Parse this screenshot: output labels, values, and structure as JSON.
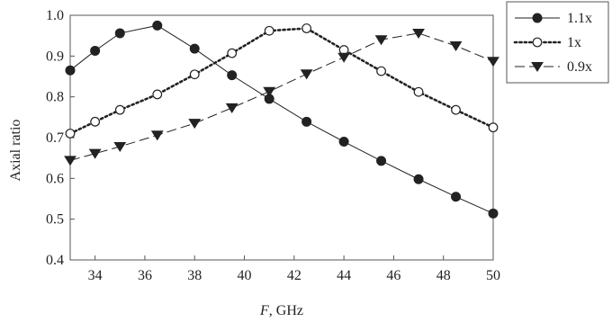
{
  "chart_data": {
    "type": "line",
    "xlabel_prefix": "F",
    "xlabel_suffix": ", GHz",
    "ylabel": "Axial ratio",
    "xlim": [
      33,
      50
    ],
    "ylim": [
      0.4,
      1.0
    ],
    "x_ticks": [
      "34",
      "36",
      "38",
      "40",
      "42",
      "44",
      "46",
      "48",
      "50"
    ],
    "y_ticks": [
      "0.4",
      "0.5",
      "0.6",
      "0.7",
      "0.8",
      "0.9",
      "1.0"
    ],
    "grid": false,
    "legend_placement": "top-right outside plot",
    "series": [
      {
        "name": "1.1x",
        "line_style": "solid",
        "marker": "filled-circle",
        "points": [
          [
            33,
            0.865
          ],
          [
            34,
            0.913
          ],
          [
            35,
            0.956
          ],
          [
            36.5,
            0.975
          ],
          [
            38,
            0.918
          ],
          [
            39.5,
            0.853
          ],
          [
            41,
            0.795
          ],
          [
            42.5,
            0.739
          ],
          [
            44,
            0.69
          ],
          [
            45.5,
            0.643
          ],
          [
            47,
            0.598
          ],
          [
            48.5,
            0.555
          ],
          [
            50,
            0.514
          ]
        ]
      },
      {
        "name": "1x",
        "line_style": "dotted",
        "marker": "open-circle",
        "points": [
          [
            33,
            0.71
          ],
          [
            34,
            0.739
          ],
          [
            35,
            0.768
          ],
          [
            36.5,
            0.806
          ],
          [
            38,
            0.855
          ],
          [
            39.5,
            0.907
          ],
          [
            41,
            0.962
          ],
          [
            42.5,
            0.968
          ],
          [
            44,
            0.915
          ],
          [
            45.5,
            0.863
          ],
          [
            47,
            0.812
          ],
          [
            48.5,
            0.768
          ],
          [
            50,
            0.725
          ]
        ]
      },
      {
        "name": "0.9x",
        "line_style": "dashed",
        "marker": "filled-triangle-down",
        "points": [
          [
            33,
            0.644
          ],
          [
            34,
            0.661
          ],
          [
            35,
            0.678
          ],
          [
            36.5,
            0.706
          ],
          [
            38,
            0.735
          ],
          [
            39.5,
            0.773
          ],
          [
            41,
            0.813
          ],
          [
            42.5,
            0.856
          ],
          [
            44,
            0.897
          ],
          [
            45.5,
            0.94
          ],
          [
            47,
            0.956
          ],
          [
            48.5,
            0.925
          ],
          [
            50,
            0.887
          ]
        ]
      }
    ],
    "colors": {
      "axis": "#555555",
      "series": "#222222",
      "marker_open_fill": "#ffffff"
    }
  }
}
